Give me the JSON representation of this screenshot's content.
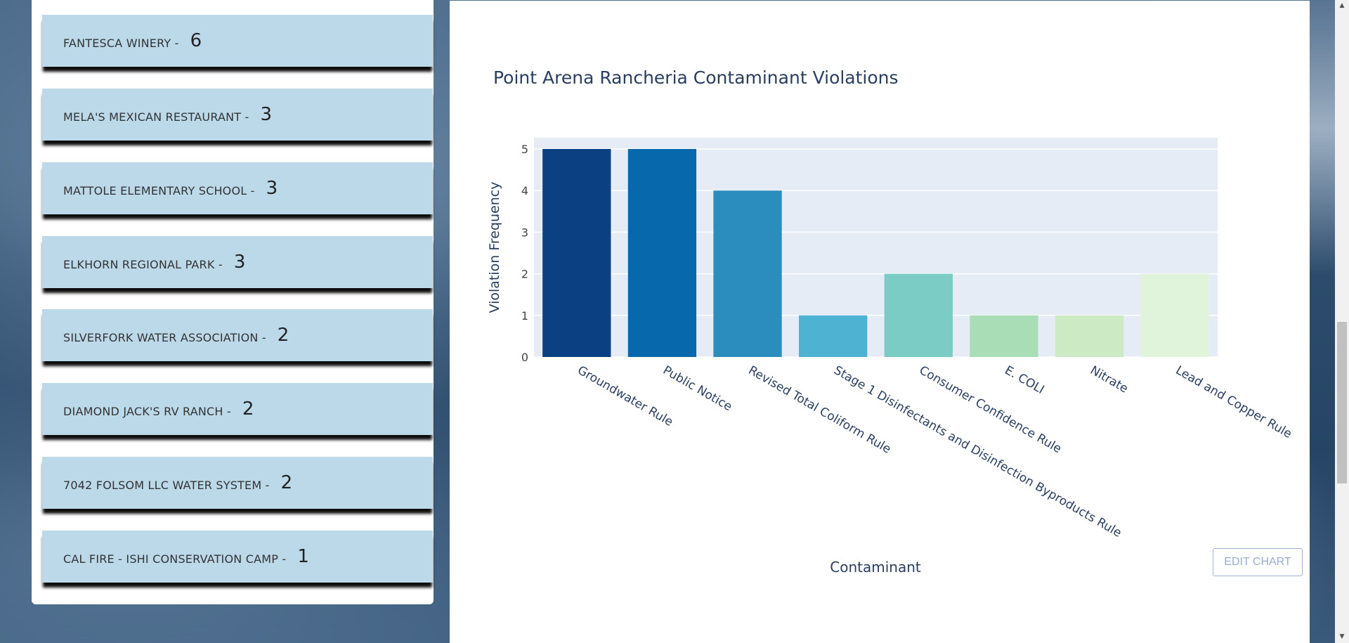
{
  "violations_list": [
    {
      "name": "FANTESCA WINERY -",
      "count": "6"
    },
    {
      "name": "MELA'S MEXICAN RESTAURANT -",
      "count": "3"
    },
    {
      "name": "MATTOLE ELEMENTARY SCHOOL -",
      "count": "3"
    },
    {
      "name": "ELKHORN REGIONAL PARK -",
      "count": "3"
    },
    {
      "name": "SILVERFORK WATER ASSOCIATION -",
      "count": "2"
    },
    {
      "name": "DIAMOND JACK'S RV RANCH -",
      "count": "2"
    },
    {
      "name": "7042 FOLSOM LLC WATER SYSTEM -",
      "count": "2"
    },
    {
      "name": "CAL FIRE - ISHI CONSERVATION CAMP -",
      "count": "1"
    }
  ],
  "chart": {
    "edit_label": "EDIT CHART"
  },
  "chart_data": {
    "type": "bar",
    "title": "Point Arena Rancheria Contaminant Violations",
    "xlabel": "Contaminant",
    "ylabel": "Violation Frequency",
    "categories": [
      "Groundwater Rule",
      "Public Notice",
      "Revised Total Coliform Rule",
      "Stage 1 Disinfectants and Disinfection Byproducts Rule",
      "Consumer Confidence Rule",
      "E. COLI",
      "Nitrate",
      "Lead and Copper Rule"
    ],
    "values": [
      5,
      5,
      4,
      1,
      2,
      1,
      1,
      2
    ],
    "colors": [
      "#0b4083",
      "#0868ac",
      "#2b8cbe",
      "#4eb3d3",
      "#7bccc4",
      "#a8ddb5",
      "#ccebc5",
      "#e0f3db"
    ],
    "ylim": [
      0,
      5
    ],
    "yticks": [
      0,
      1,
      2,
      3,
      4,
      5
    ],
    "plot_background": "#e5ecf6",
    "grid": true
  },
  "icons": {
    "scroll_up": "chevron-up-icon",
    "scroll_down": "chevron-down-icon"
  }
}
